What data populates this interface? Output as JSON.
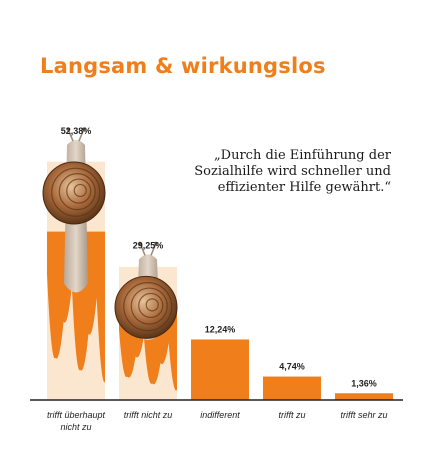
{
  "title": "Langsam & wirkungslos",
  "quote": "„Durch die Einführung der Sozialhilfe wird schneller und effizienter Hilfe gewährt.“",
  "chart_data": {
    "type": "bar",
    "categories": [
      "trifft überhaupt nicht zu",
      "trifft nicht zu",
      "indifferent",
      "trifft zu",
      "trifft sehr zu"
    ],
    "category_lines": [
      [
        "trifft überhaupt",
        "nicht zu"
      ],
      [
        "trifft nicht zu"
      ],
      [
        "indifferent"
      ],
      [
        "trifft zu"
      ],
      [
        "trifft sehr zu"
      ]
    ],
    "values": [
      52.38,
      29.25,
      12.24,
      4.74,
      1.36
    ],
    "labels": [
      "52,38%",
      "29,25%",
      "12,24%",
      "4,74%",
      "1,36%"
    ],
    "ylim": [
      0,
      55
    ],
    "unit": "%",
    "bar_color": "#f07e1a",
    "snail_bars": [
      0,
      1
    ]
  }
}
